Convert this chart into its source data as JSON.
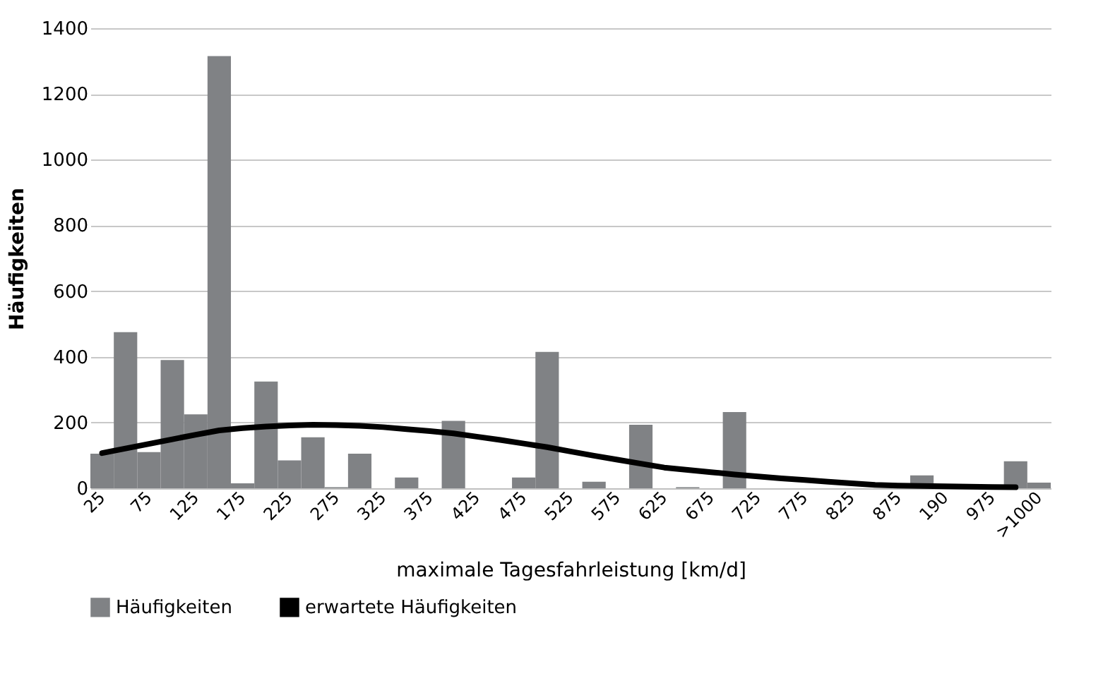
{
  "chart_data": {
    "type": "bar",
    "xlabel": "maximale Tagesfahrleistung [km/d]",
    "ylabel": "Häufigkeiten",
    "categories": [
      "25",
      null,
      "75",
      null,
      "125",
      null,
      "175",
      null,
      "225",
      null,
      "275",
      null,
      "325",
      null,
      "375",
      null,
      "425",
      null,
      "475",
      null,
      "525",
      null,
      "575",
      null,
      "625",
      null,
      "675",
      null,
      "725",
      null,
      "775",
      null,
      "825",
      null,
      "875",
      null,
      "190",
      null,
      "975",
      null,
      ">1000"
    ],
    "series": [
      {
        "name": "Häufigkeiten",
        "color": "#808285",
        "values": [
          105,
          475,
          110,
          390,
          225,
          1315,
          15,
          325,
          85,
          155,
          3,
          105,
          0,
          33,
          0,
          205,
          0,
          0,
          33,
          415,
          0,
          20,
          0,
          193,
          0,
          3,
          0,
          232,
          0,
          0,
          0,
          0,
          0,
          0,
          0,
          39,
          0,
          0,
          0,
          82,
          17
        ]
      },
      {
        "name": "erwartete Häufigkeiten",
        "type": "line",
        "color": "#000000",
        "values": [
          107,
          121,
          135,
          149,
          163,
          176,
          183,
          188,
          191,
          193,
          192,
          190,
          186,
          180,
          174,
          167,
          157,
          147,
          136,
          125,
          112,
          99,
          87,
          75,
          63,
          56,
          49,
          42,
          36,
          30,
          25,
          20,
          15,
          10,
          8,
          7,
          6,
          5,
          4,
          3,
          null
        ]
      }
    ],
    "ylim": [
      0,
      1400
    ],
    "yticks": [
      0,
      200,
      400,
      600,
      800,
      1000,
      1200,
      1400
    ],
    "grid": "y",
    "legend": "bottom",
    "marker": "none"
  }
}
